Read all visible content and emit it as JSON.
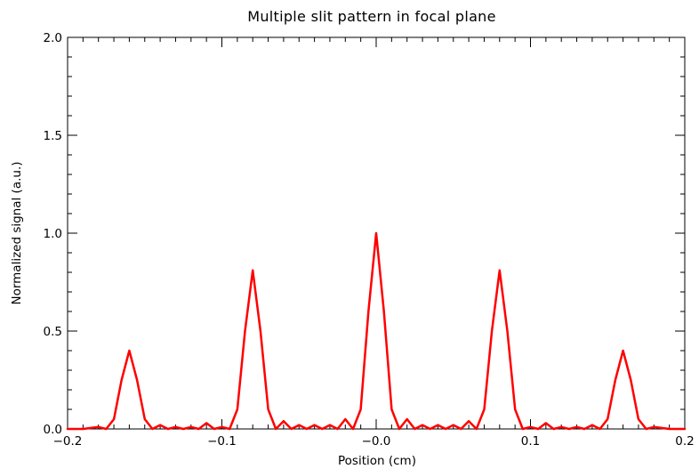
{
  "chart_data": {
    "type": "line",
    "title": "Multiple slit pattern in focal plane",
    "xlabel": "Position (cm)",
    "ylabel": "Normalized signal (a.u.)",
    "xlim": [
      -0.2,
      0.2
    ],
    "ylim": [
      0.0,
      2.0
    ],
    "x_ticks": [
      -0.2,
      -0.1,
      0.0,
      0.1,
      0.2
    ],
    "x_tick_labels": [
      "−0.2",
      "−0.1",
      "−0.0",
      "0.1",
      "0.2"
    ],
    "y_ticks": [
      0.0,
      0.5,
      1.0,
      1.5,
      2.0
    ],
    "y_tick_labels": [
      "0.0",
      "0.5",
      "1.0",
      "1.5",
      "2.0"
    ],
    "grid": false,
    "series": [
      {
        "color": "#ff0000",
        "x": [
          -0.2,
          -0.19,
          -0.18,
          -0.175,
          -0.17,
          -0.165,
          -0.16,
          -0.155,
          -0.15,
          -0.145,
          -0.14,
          -0.135,
          -0.13,
          -0.125,
          -0.12,
          -0.115,
          -0.11,
          -0.105,
          -0.1,
          -0.095,
          -0.09,
          -0.085,
          -0.08,
          -0.075,
          -0.07,
          -0.065,
          -0.06,
          -0.055,
          -0.05,
          -0.045,
          -0.04,
          -0.035,
          -0.03,
          -0.025,
          -0.02,
          -0.015,
          -0.01,
          -0.005,
          0.0,
          0.005,
          0.01,
          0.015,
          0.02,
          0.025,
          0.03,
          0.035,
          0.04,
          0.045,
          0.05,
          0.055,
          0.06,
          0.065,
          0.07,
          0.075,
          0.08,
          0.085,
          0.09,
          0.095,
          0.1,
          0.105,
          0.11,
          0.115,
          0.12,
          0.125,
          0.13,
          0.135,
          0.14,
          0.145,
          0.15,
          0.155,
          0.16,
          0.165,
          0.17,
          0.175,
          0.18,
          0.19,
          0.2
        ],
        "y": [
          0.0,
          0.0,
          0.01,
          0.0,
          0.05,
          0.25,
          0.4,
          0.25,
          0.05,
          0.0,
          0.02,
          0.0,
          0.01,
          0.0,
          0.01,
          0.0,
          0.03,
          0.0,
          0.01,
          0.0,
          0.1,
          0.5,
          0.81,
          0.5,
          0.1,
          0.0,
          0.04,
          0.0,
          0.02,
          0.0,
          0.02,
          0.0,
          0.02,
          0.0,
          0.05,
          0.0,
          0.1,
          0.6,
          1.0,
          0.6,
          0.1,
          0.0,
          0.05,
          0.0,
          0.02,
          0.0,
          0.02,
          0.0,
          0.02,
          0.0,
          0.04,
          0.0,
          0.1,
          0.5,
          0.81,
          0.5,
          0.1,
          0.0,
          0.01,
          0.0,
          0.03,
          0.0,
          0.01,
          0.0,
          0.01,
          0.0,
          0.02,
          0.0,
          0.05,
          0.25,
          0.4,
          0.25,
          0.05,
          0.0,
          0.01,
          0.0,
          0.0
        ]
      }
    ]
  }
}
